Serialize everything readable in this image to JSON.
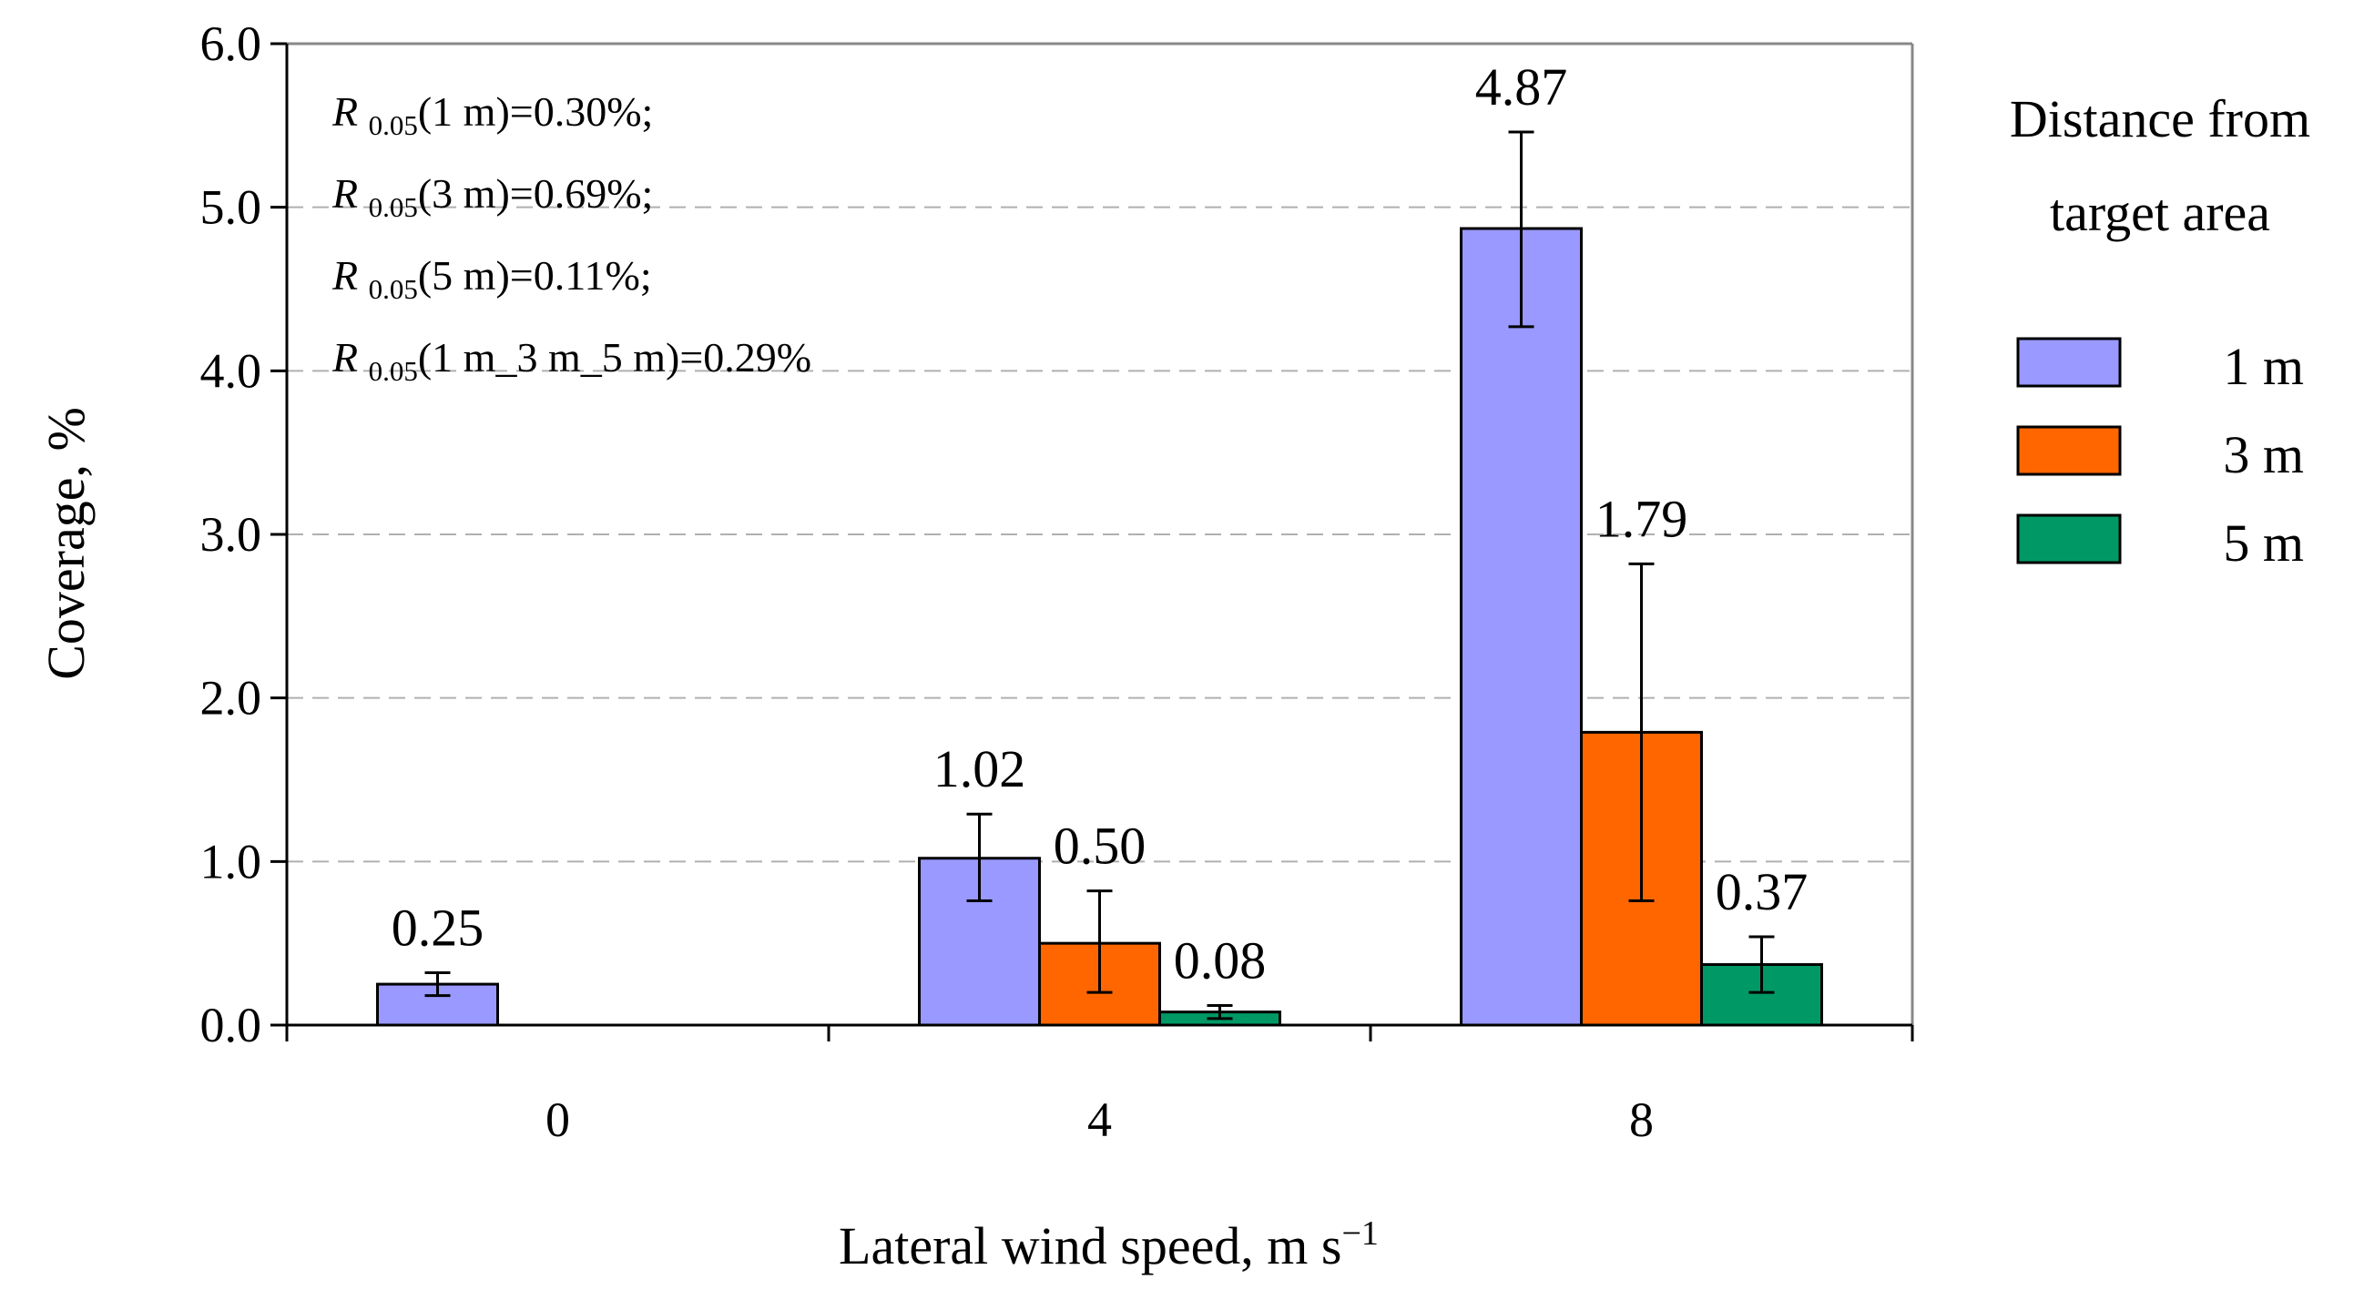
{
  "chart_data": {
    "type": "bar",
    "categories": [
      "0",
      "4",
      "8"
    ],
    "series": [
      {
        "name": "1 m",
        "color": "#9999FF",
        "values": [
          0.25,
          1.02,
          4.87
        ],
        "labels": [
          "0.25",
          "1.02",
          "4.87"
        ],
        "err_low": [
          0.18,
          0.76,
          4.27
        ],
        "err_high": [
          0.32,
          1.29,
          5.46
        ]
      },
      {
        "name": "3 m",
        "color": "#FF6600",
        "values": [
          0,
          0.5,
          1.79
        ],
        "labels": [
          "",
          "0.50",
          "1.79"
        ],
        "err_low": [
          null,
          0.2,
          0.76
        ],
        "err_high": [
          null,
          0.82,
          2.82
        ]
      },
      {
        "name": "5 m",
        "color": "#009966",
        "values": [
          0,
          0.08,
          0.37
        ],
        "labels": [
          "",
          "0.08",
          "0.37"
        ],
        "err_low": [
          null,
          0.04,
          0.2
        ],
        "err_high": [
          null,
          0.12,
          0.54
        ]
      }
    ],
    "xlabel": "Lateral wind speed, m s",
    "xlabel_sup": "−1",
    "ylabel": "Coverage, %",
    "ylim": [
      0,
      6
    ],
    "yticks": [
      "0.0",
      "1.0",
      "2.0",
      "3.0",
      "4.0",
      "5.0",
      "6.0"
    ],
    "grid": true,
    "legend": {
      "title_line1": "Distance from",
      "title_line2": "target area",
      "position": "right"
    },
    "annotations": [
      {
        "symbol": "R",
        "sub": "0.05",
        "text": "(1 m)=0.30%;"
      },
      {
        "symbol": "R",
        "sub": "0.05",
        "text": "(3 m)=0.69%;"
      },
      {
        "symbol": "R",
        "sub": "0.05",
        "text": "(5 m)=0.11%;"
      },
      {
        "symbol": "R",
        "sub": "0.05",
        "text": "(1 m_3 m_5 m)=0.29%"
      }
    ]
  }
}
